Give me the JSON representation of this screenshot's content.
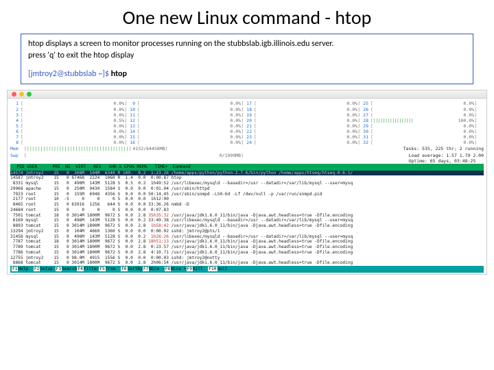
{
  "title": "One new Linux command - htop",
  "desc": {
    "line1": "htop displays a screen to monitor processes running on the stubbslab.igb.illinois.edu server.",
    "line2": "press 'q' to exit the htop display",
    "prompt": "[jmtroy2@stubbslab ~]$",
    "cmd": "htop"
  },
  "cpus": [
    [
      {
        "n": "1",
        "f": "",
        "p": "0.0%"
      },
      {
        "n": "9",
        "f": "",
        "p": "0.0%"
      },
      {
        "n": "17",
        "f": "",
        "p": "0.0%"
      },
      {
        "n": "25",
        "f": "",
        "p": "0.0%"
      }
    ],
    [
      {
        "n": "2",
        "f": "",
        "p": "0.0%"
      },
      {
        "n": "10",
        "f": "",
        "p": "0.0%"
      },
      {
        "n": "18",
        "f": "",
        "p": "0.0%"
      },
      {
        "n": "26",
        "f": "",
        "p": "0.0%"
      }
    ],
    [
      {
        "n": "3",
        "f": "",
        "p": "0.0%"
      },
      {
        "n": "11",
        "f": "",
        "p": "0.0%"
      },
      {
        "n": "19",
        "f": "",
        "p": "0.0%"
      },
      {
        "n": "27",
        "f": "",
        "p": "0.0%"
      }
    ],
    [
      {
        "n": "4",
        "f": "",
        "p": "0.5%"
      },
      {
        "n": "12",
        "f": "",
        "p": "0.0%"
      },
      {
        "n": "20",
        "f": "",
        "p": "0.0%"
      },
      {
        "n": "28",
        "f": "|||||||||||||||||",
        "p": "100.0%"
      }
    ],
    [
      {
        "n": "5",
        "f": "",
        "p": "0.0%"
      },
      {
        "n": "13",
        "f": "",
        "p": "0.0%"
      },
      {
        "n": "21",
        "f": "",
        "p": "0.0%"
      },
      {
        "n": "29",
        "f": "",
        "p": "0.0%"
      }
    ],
    [
      {
        "n": "6",
        "f": "",
        "p": "0.0%"
      },
      {
        "n": "14",
        "f": "",
        "p": "0.0%"
      },
      {
        "n": "22",
        "f": "",
        "p": "0.0%"
      },
      {
        "n": "30",
        "f": "",
        "p": "0.0%"
      }
    ],
    [
      {
        "n": "7",
        "f": "",
        "p": "0.0%"
      },
      {
        "n": "15",
        "f": "",
        "p": "0.0%"
      },
      {
        "n": "23",
        "f": "",
        "p": "0.0%"
      },
      {
        "n": "31",
        "f": "",
        "p": "0.0%"
      }
    ],
    [
      {
        "n": "8",
        "f": "",
        "p": "0.0%"
      },
      {
        "n": "16",
        "f": "",
        "p": "0.0%"
      },
      {
        "n": "24",
        "f": "",
        "p": "0.0%"
      },
      {
        "n": "32",
        "f": "",
        "p": "0.0%"
      }
    ]
  ],
  "mem": {
    "lbl": "Mem",
    "bar": "|||||||||||||||||||||||||||||||||||||||",
    "val": "4152/64458MB"
  },
  "swp": {
    "lbl": "Swp",
    "bar": "",
    "val": "0/1999MB"
  },
  "meta": {
    "tasks": "Tasks: 535, 225 thr; 2 running",
    "load": "Load average: 1.57 1.79 2.00",
    "uptime": "Uptime: 65 days, 03:48:25"
  },
  "header": "  PID USER      PRI  NI  VIRT   RES   SHR S CPU% MEM%   TIME+  Command",
  "procs": [
    {
      "hl": true,
      "t": "14574 jmtroy2    25   0  306M  104M  6340 R 100.  0.2  1:23.26 /home/apps/python/python-2.7.6/bin/python /home/apps/htseq/htseq-0.6.1/"
    },
    {
      "t": "14587 jmtroy2    15   0 67468  2224  1060 R  1.4  0.0  0:00.87 htop"
    },
    {
      "t": " 8331 mysql      15   0  496M  143M  5128 S  0.5  0.2  1h49:52 /usr/libexec/mysqld --basedir=/usr --datadir=/var/lib/mysql --user=mysq"
    },
    {
      "t": "29968 apache     15   0  250M  9430  1584 S  0.0  0.0  0:01.04 /usr/sbin/httpd"
    },
    {
      "t": " 7923 root       15   0  155M  6948  4356 S  0.0  0.0 50:14.45 /usr/sbin/snmpd -LS0-6d -Lf /dev/null -p /var/run/snmpd.pid"
    },
    {
      "t": " 2177 root       10  -5     0     0     0 S  0.0  0.0  1h12:00 "
    },
    {
      "t": " 8465 root       15   0 63916  1256   644 S  0.0  0.0 33:36.26 nmbd -D"
    },
    {
      "t": "24684 root       15   0     0     0     0 S  0.0  0.0  0:07.83 "
    },
    {
      "r": true,
      "t": " 7501 tomcat     18   0 3014M 1800M  9672 S  0.0  2.8 35h35:32 /usr/java/jdk1.6.0_11/bin/java -Djava.awt.headless=true -Dfile.encoding"
    },
    {
      "t": " 6169 mysql      15   0  496M  143M  5128 S  0.0  0.2 33:49.38 /usr/libexec/mysqld --basedir=/usr --datadir=/var/lib/mysql --user=mysq"
    },
    {
      "r": true,
      "t": " 8893 tomcat     15   0 3014M 1800M  9672 S  0.0  2.8  1h58:42 /usr/java/jdk1.6.0_11/bin/java -Djava.awt.headless=true -Dfile.encoding"
    },
    {
      "t": "13294 jmtroy2    15   0  104M  4660  1360 S  0.0  0.0  0:00.02 sshd: jmtroy2@pts/1"
    },
    {
      "r": true,
      "t": "31458 mysql      15   0  496M  143M  5128 S  0.0  0.2  1h26:26 /usr/libexec/mysqld --basedir=/usr --datadir=/var/lib/mysql --user=mysq"
    },
    {
      "r": true,
      "t": " 7787 tomcat     18   0 3014M 1800M  9672 S  0.0  2.8 18h51:13 /usr/java/jdk1.6.0_11/bin/java -Djava.awt.headless=true -Dfile.encoding"
    },
    {
      "t": " 7789 tomcat     15   0 3014M 1800M  9672 S  0.0  2.8  0:23.57 /usr/java/jdk1.6.0_11/bin/java -Djava.awt.headless=true -Dfile.encoding"
    },
    {
      "t": " 7788 tomcat     15   0 3014M 1800M  9672 S  0.0  2.8  4:10.71 /usr/java/jdk1.6.0_11/bin/java -Djava.awt.headless=true -Dfile.encoding"
    },
    {
      "t": "12755 jmtroy2    15   0 98.0M  4915  1556 S  0.0  0.0  0:00.03 sshd: jmtroy2@notty"
    },
    {
      "t": " 8868 tomcat     15   0 3014M 1800M  9672 S  0.0  2.8  2h06:54 /usr/java/jdk1.6.0_11/bin/java -Djava.awt.headless=true -Dfile.encoding"
    }
  ],
  "footer": {
    "keys": [
      "F1",
      "F2",
      "F3",
      "F4",
      "F5",
      "F6",
      "F7",
      "F8",
      "F9",
      "F10"
    ],
    "labels": [
      "Help  ",
      "Setup ",
      "Search",
      "Filter",
      "Tree  ",
      "SortBy",
      "Nice -",
      "Nice +",
      "Kill  ",
      "Quit  "
    ]
  }
}
